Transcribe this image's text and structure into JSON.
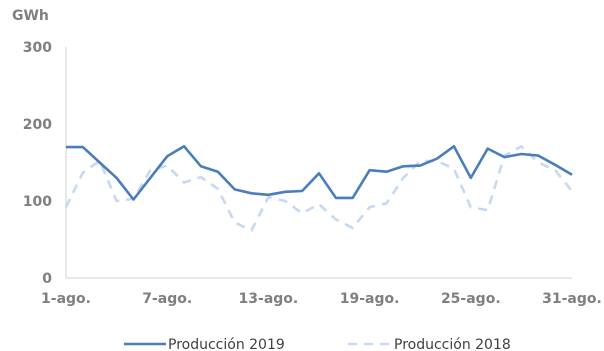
{
  "chart_data": {
    "type": "line",
    "unit_label": "GWh",
    "ylim": [
      0,
      300
    ],
    "y_ticks": [
      0,
      100,
      200,
      300
    ],
    "x_tick_labels": [
      "1-ago.",
      "7-ago.",
      "13-ago.",
      "19-ago.",
      "25-ago.",
      "31-ago."
    ],
    "x_tick_days": [
      1,
      7,
      13,
      19,
      25,
      31
    ],
    "x": [
      1,
      2,
      3,
      4,
      5,
      6,
      7,
      8,
      9,
      10,
      11,
      12,
      13,
      14,
      15,
      16,
      17,
      18,
      19,
      20,
      21,
      22,
      23,
      24,
      25,
      26,
      27,
      28,
      29,
      30,
      31
    ],
    "grid": false,
    "legend_position": "bottom",
    "series": [
      {
        "name": "Producción 2019",
        "color": "#4a7ebb",
        "style": "solid",
        "values": [
          170,
          170,
          150,
          130,
          102,
          130,
          158,
          171,
          145,
          138,
          115,
          110,
          108,
          112,
          113,
          136,
          104,
          104,
          140,
          138,
          145,
          146,
          155,
          171,
          130,
          168,
          157,
          161,
          159,
          147,
          134
        ]
      },
      {
        "name": "Producción 2018",
        "color": "#c6d9f1",
        "style": "dashed",
        "values": [
          92,
          137,
          152,
          100,
          103,
          140,
          146,
          124,
          131,
          116,
          72,
          62,
          105,
          100,
          84,
          96,
          76,
          65,
          92,
          97,
          130,
          152,
          152,
          142,
          92,
          88,
          159,
          171,
          150,
          140,
          113
        ]
      }
    ]
  }
}
